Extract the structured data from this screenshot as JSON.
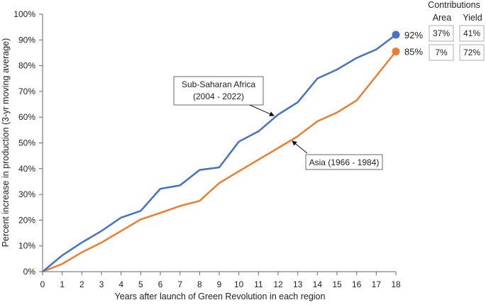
{
  "chart_data": {
    "type": "line",
    "x": [
      0,
      1,
      2,
      3,
      4,
      5,
      6,
      7,
      8,
      9,
      10,
      11,
      12,
      13,
      14,
      15,
      16,
      17,
      18
    ],
    "xlabel": "Years after launch of Green Revolution in each region",
    "ylabel": "Percent increase in  production (3-yr moving average)",
    "ylim": [
      0,
      100
    ],
    "xlim": [
      0,
      18
    ],
    "y_tick_labels": [
      "0%",
      "10%",
      "20%",
      "30%",
      "40%",
      "50%",
      "60%",
      "70%",
      "80%",
      "90%",
      "100%"
    ],
    "x_tick_labels": [
      "0",
      "1",
      "2",
      "3",
      "4",
      "5",
      "6",
      "7",
      "8",
      "9",
      "10",
      "11",
      "12",
      "13",
      "14",
      "15",
      "16",
      "17",
      "18"
    ],
    "grid": false,
    "series": [
      {
        "name": "Sub-Saharan Africa (2004 - 2022)",
        "label_line1": "Sub-Saharan Africa",
        "label_line2": "(2004 - 2022)",
        "color": "#4472C4",
        "values": [
          0,
          6.3,
          11.3,
          15.8,
          21,
          23.6,
          32.2,
          33.5,
          39.5,
          40.5,
          50.5,
          54.5,
          61,
          65.8,
          75,
          78.5,
          83,
          86.3,
          92
        ],
        "end_label": "92%",
        "area": "37%",
        "yield": "41%"
      },
      {
        "name": "Asia (1966 - 1984)",
        "label_line1": "Asia (1966 - 1984)",
        "color": "#ED7D31",
        "values": [
          0,
          3,
          7.5,
          11.3,
          15.8,
          20.3,
          22.8,
          25.5,
          27.5,
          34.4,
          39,
          43.5,
          48,
          52.6,
          58.4,
          61.8,
          66.5,
          76,
          85.5
        ],
        "end_label": "85%",
        "area": "7%",
        "yield": "72%"
      }
    ],
    "contributions": {
      "title": "Contributions",
      "col_area": "Area",
      "col_yield": "Yield"
    }
  }
}
